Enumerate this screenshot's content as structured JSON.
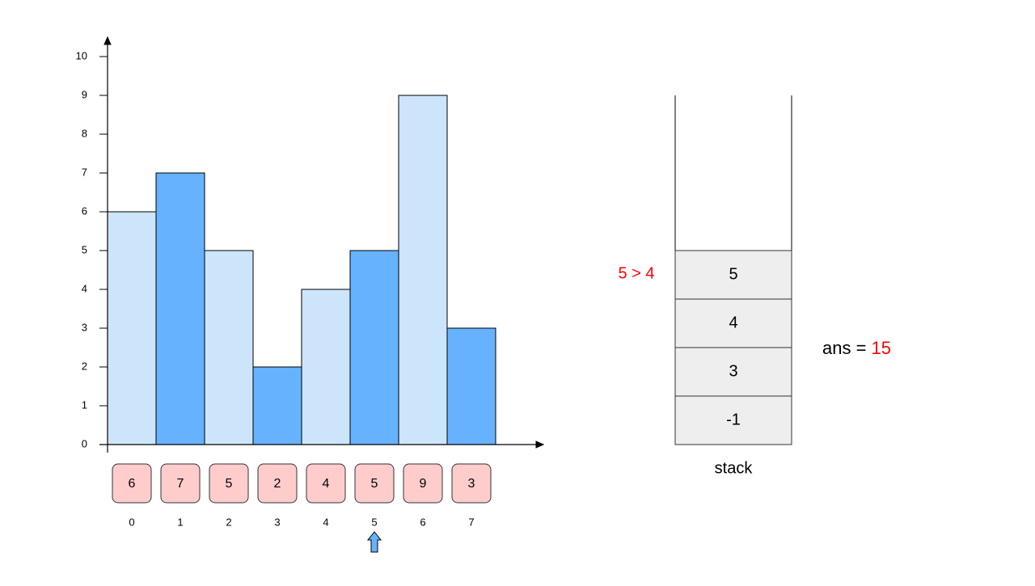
{
  "chart_data": {
    "type": "bar",
    "categories": [
      "0",
      "1",
      "2",
      "3",
      "4",
      "5",
      "6",
      "7"
    ],
    "values": [
      6,
      7,
      5,
      2,
      4,
      5,
      9,
      3
    ],
    "colors": [
      "#cce5fb",
      "#66b2ff",
      "#cce5fb",
      "#66b2ff",
      "#cce5fb",
      "#66b2ff",
      "#cce5fb",
      "#66b2ff"
    ],
    "ylim": [
      0,
      10
    ],
    "yticks": [
      0,
      1,
      2,
      3,
      4,
      5,
      6,
      7,
      8,
      9,
      10
    ]
  },
  "comparison": "5 > 4",
  "stack": {
    "label": "stack",
    "items": [
      5,
      4,
      3,
      -1
    ]
  },
  "ans": {
    "label": "ans = ",
    "value": 15
  }
}
